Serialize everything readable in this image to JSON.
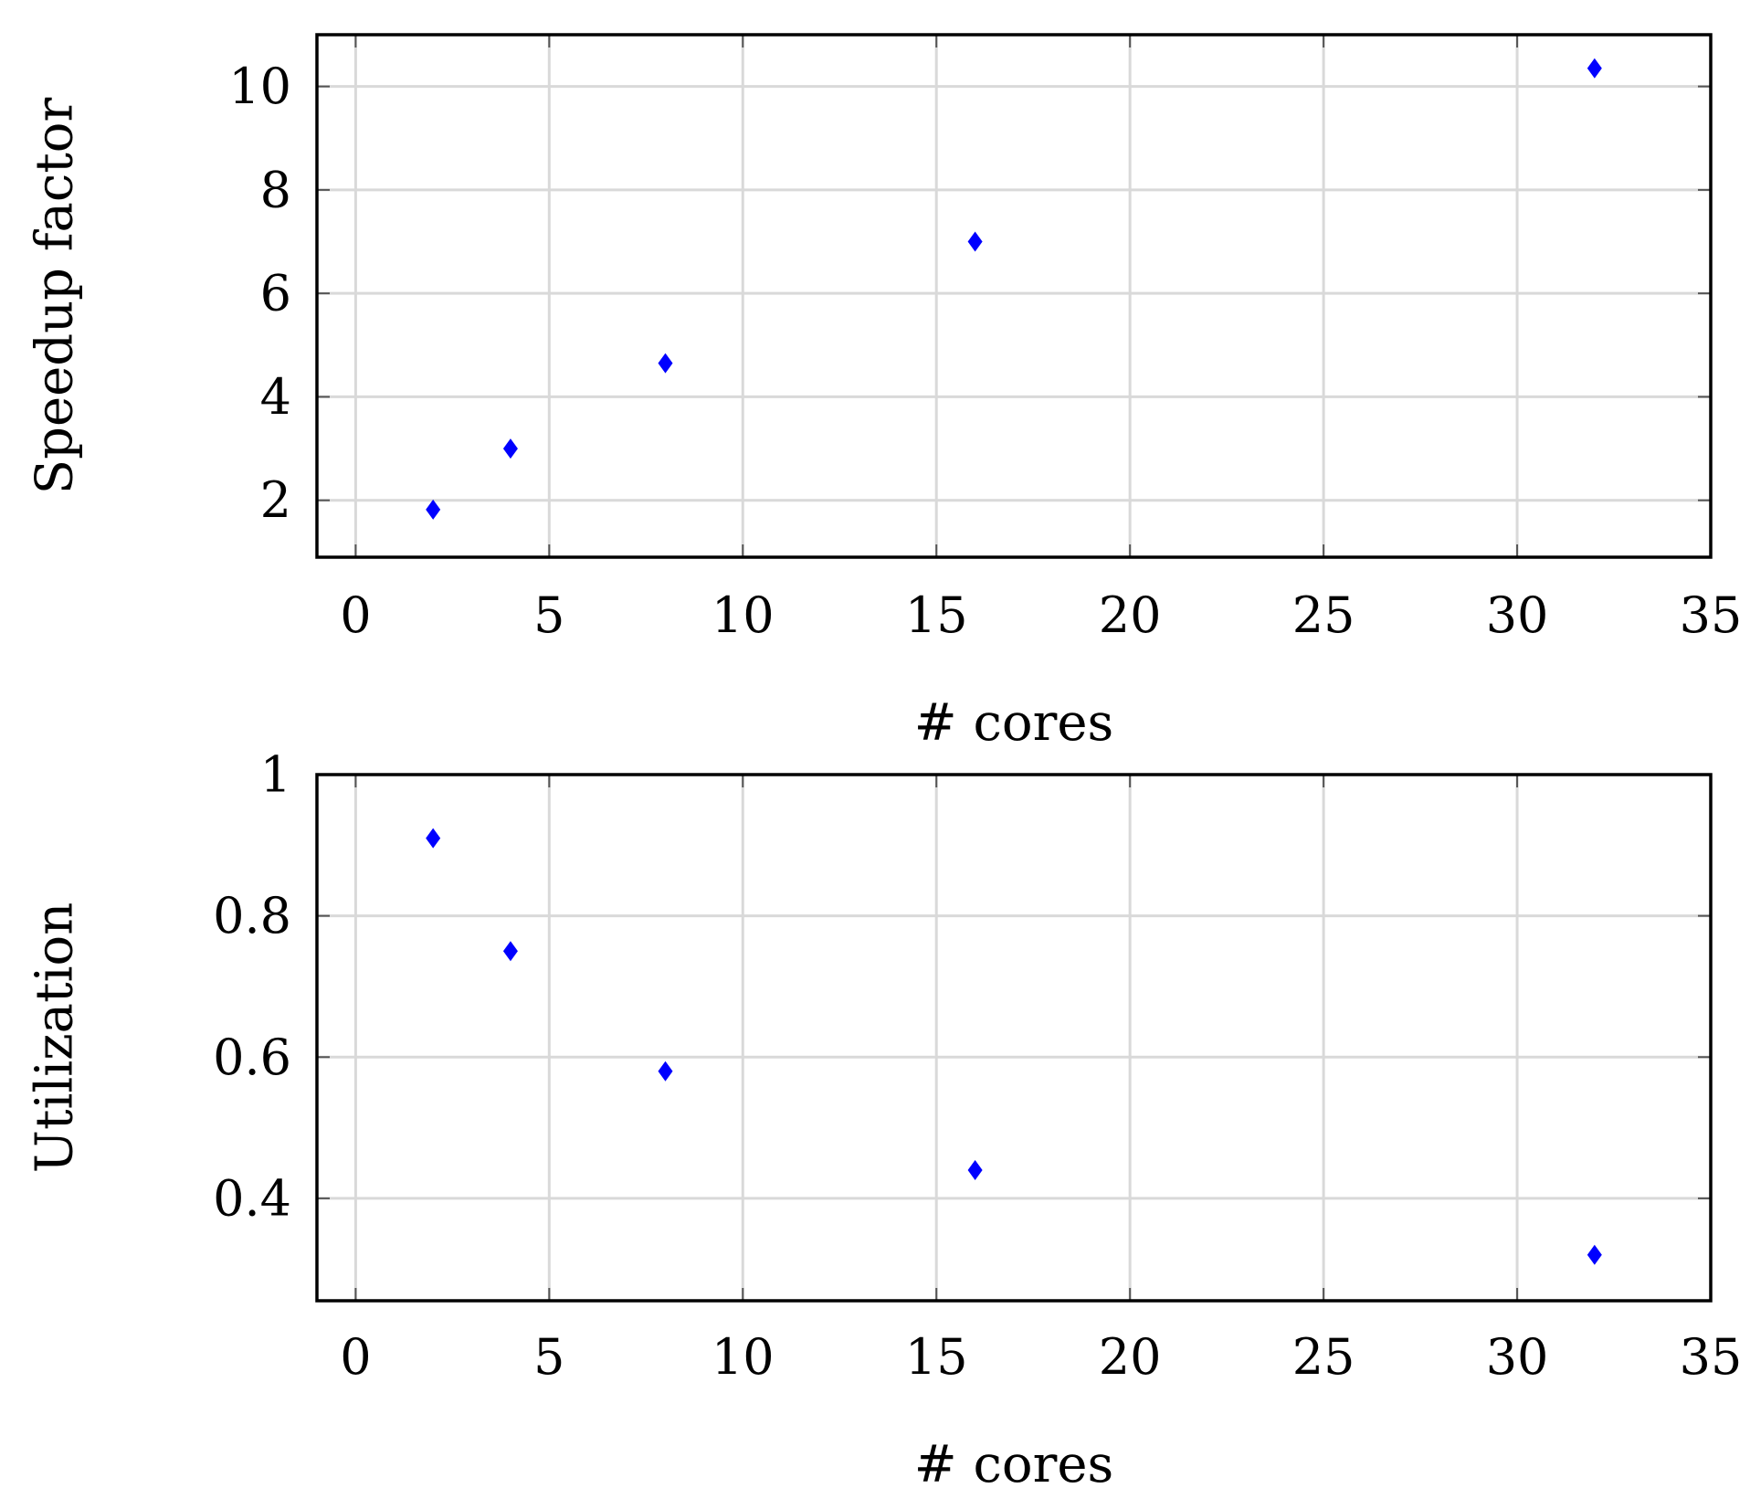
{
  "chart_data": [
    {
      "type": "scatter",
      "name": "speedup",
      "xlabel": "# cores",
      "ylabel": "Speedup factor",
      "xlim": [
        -1,
        35
      ],
      "ylim": [
        0.9,
        11
      ],
      "xticks": [
        0,
        5,
        10,
        15,
        20,
        25,
        30,
        35
      ],
      "yticks": [
        2,
        4,
        6,
        8,
        10
      ],
      "xtick_labels": [
        "0",
        "5",
        "10",
        "15",
        "20",
        "25",
        "30",
        "35"
      ],
      "ytick_labels": [
        "2",
        "4",
        "6",
        "8",
        "10"
      ],
      "grid": true,
      "marker": "diamond",
      "color": "#0000ff",
      "x": [
        2,
        4,
        8,
        16,
        32
      ],
      "y": [
        1.82,
        3.0,
        4.65,
        7.0,
        10.35
      ]
    },
    {
      "type": "scatter",
      "name": "utilization",
      "xlabel": "# cores",
      "ylabel": "Utilization",
      "xlim": [
        -1,
        35
      ],
      "ylim": [
        0.255,
        1.0
      ],
      "xticks": [
        0,
        5,
        10,
        15,
        20,
        25,
        30,
        35
      ],
      "yticks": [
        0.4,
        0.6,
        0.8,
        1.0
      ],
      "xtick_labels": [
        "0",
        "5",
        "10",
        "15",
        "20",
        "25",
        "30",
        "35"
      ],
      "ytick_labels": [
        "0.4",
        "0.6",
        "0.8",
        "1"
      ],
      "grid": true,
      "marker": "diamond",
      "color": "#0000ff",
      "x": [
        2,
        4,
        8,
        16,
        32
      ],
      "y": [
        0.91,
        0.75,
        0.58,
        0.44,
        0.32
      ]
    }
  ]
}
